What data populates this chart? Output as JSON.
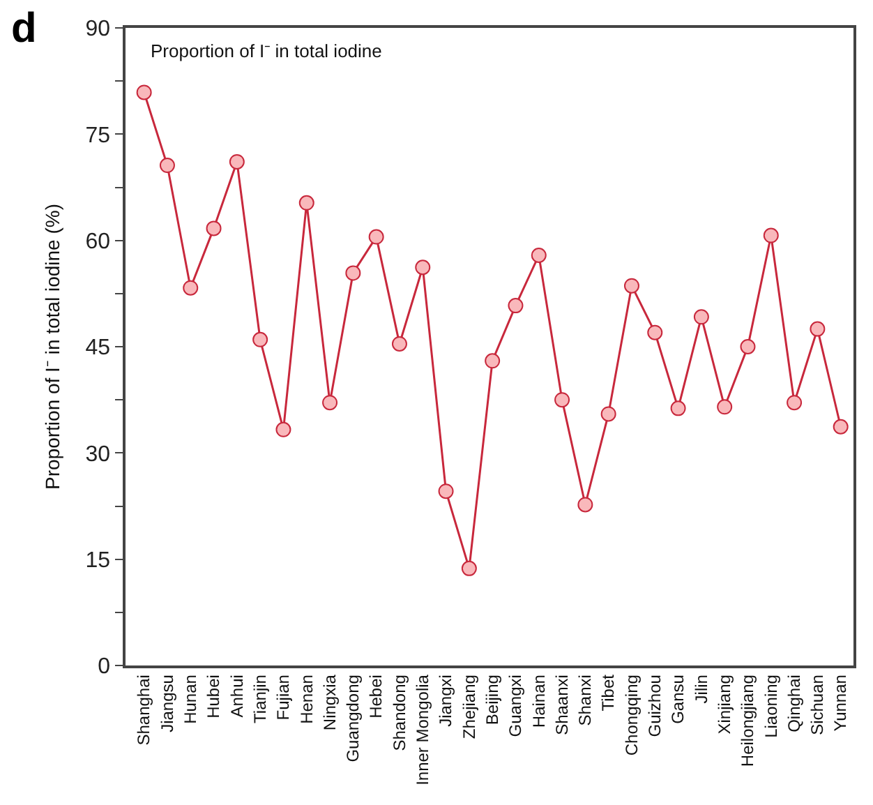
{
  "chart_data": {
    "type": "line",
    "annotations": [
      "d",
      "Proportion of I⁻ in total iodine"
    ],
    "ylabel": "Proportion of I⁻ in total iodine (%)",
    "categories": [
      "Shanghai",
      "Jiangsu",
      "Hunan",
      "Hubei",
      "Anhui",
      "Tianjin",
      "Fujian",
      "Henan",
      "Ningxia",
      "Guangdong",
      "Hebei",
      "Shandong",
      "Inner Mongolia",
      "Jiangxi",
      "Zhejiang",
      "Beijing",
      "Guangxi",
      "Hainan",
      "Shaanxi",
      "Shanxi",
      "Tibet",
      "Chongqing",
      "Guizhou",
      "Gansu",
      "Jilin",
      "Xinjiang",
      "Heilongjiang",
      "Liaoning",
      "Qinghai",
      "Sichuan",
      "Yunnan"
    ],
    "series": [
      {
        "color": "#c8283c",
        "values": [
          80.9,
          70.6,
          53.3,
          61.7,
          71.1,
          46.0,
          33.3,
          65.3,
          37.1,
          55.4,
          60.5,
          45.4,
          56.2,
          24.6,
          13.7,
          43.0,
          50.8,
          57.9,
          37.5,
          22.7,
          35.5,
          53.6,
          47.0,
          36.3,
          49.2,
          36.5,
          45.0,
          60.7,
          37.1,
          47.5,
          33.7
        ]
      }
    ],
    "marker": "circle",
    "line_style": "solid",
    "yticks": [
      0,
      {
        "value": 7.5,
        "label": null
      },
      15,
      {
        "value": 22.5,
        "label": null
      },
      30,
      {
        "value": 37.5,
        "label": null
      },
      45,
      {
        "value": 52.5,
        "label": null
      },
      60,
      {
        "value": 67.5,
        "label": null
      },
      75,
      {
        "value": 82.5,
        "label": null
      },
      90
    ],
    "ylim": [
      0,
      90
    ]
  }
}
